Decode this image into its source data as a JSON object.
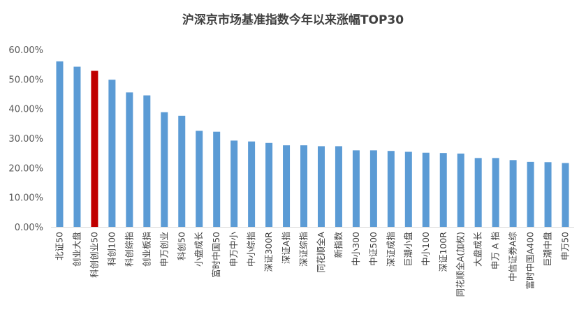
{
  "chart_data": {
    "type": "bar",
    "title": "沪深京市场基准指数今年以来涨幅TOP30",
    "xlabel": "",
    "ylabel": "",
    "ylim": [
      0,
      60
    ],
    "yticks": [
      "0.00%",
      "10.00%",
      "20.00%",
      "30.00%",
      "40.00%",
      "50.00%",
      "60.00%"
    ],
    "grid": false,
    "legend": "none",
    "categories": [
      "北证50",
      "创业大盘",
      "科创创业50",
      "科创100",
      "科创综指",
      "创业板指",
      "申万创业",
      "科创50",
      "小盘成长",
      "富时中国50",
      "申万中小",
      "中小综指",
      "深证300R",
      "深证A指",
      "深证综指",
      "同花顺全A",
      "新指数",
      "中小300",
      "中证500",
      "深证成指",
      "巨潮小盘",
      "中小100",
      "深证100R",
      "同花顺全A(加权)",
      "大盘成长",
      "申万 A 指",
      "中信证券A综",
      "富时中国A400",
      "巨潮中盘",
      "申万50"
    ],
    "series": [
      {
        "values": [
          56.0,
          54.2,
          52.8,
          49.8,
          45.5,
          44.5,
          38.8,
          37.6,
          32.5,
          32.2,
          29.2,
          28.9,
          28.4,
          27.6,
          27.6,
          27.3,
          27.3,
          25.9,
          25.9,
          25.7,
          25.4,
          25.1,
          25.0,
          24.8,
          23.3,
          23.3,
          22.6,
          22.0,
          21.9,
          21.6
        ]
      }
    ],
    "colors": {
      "bar": "#5b9bd5",
      "highlight": "#c00000",
      "axis": "#d9d9d9",
      "title": "#404040",
      "tick": "#595959"
    },
    "highlight_index": 2
  }
}
